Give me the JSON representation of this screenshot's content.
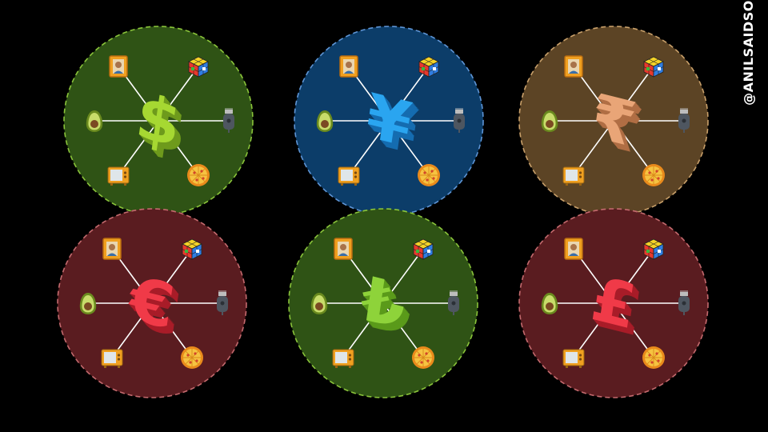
{
  "handle": "@ANILSAIDSO",
  "hubs": [
    {
      "currency": "dollar",
      "symbol": "$",
      "fill": "#2f5315",
      "border": "#8ac43a",
      "accent": "#a6d832",
      "accent_dark": "#6e9a1c"
    },
    {
      "currency": "yen",
      "symbol": "¥",
      "fill": "#0c3d69",
      "border": "#5e95d6",
      "accent": "#2aa5f0",
      "accent_dark": "#156cb0"
    },
    {
      "currency": "rupee",
      "symbol": "₹",
      "fill": "#5c4425",
      "border": "#c9a06a",
      "accent": "#e9a577",
      "accent_dark": "#b06e44"
    },
    {
      "currency": "euro",
      "symbol": "€",
      "fill": "#5a1c20",
      "border": "#c46a6e",
      "accent": "#f03a48",
      "accent_dark": "#a81c28"
    },
    {
      "currency": "lira",
      "symbol": "₺",
      "fill": "#2f5315",
      "border": "#8ac43a",
      "accent": "#8ed33a",
      "accent_dark": "#5a9a1a"
    },
    {
      "currency": "pound",
      "symbol": "£",
      "fill": "#5a1c20",
      "border": "#c46a6e",
      "accent": "#f03a48",
      "accent_dark": "#a81c28"
    }
  ],
  "goods": [
    "portrait-icon",
    "rubiks-cube-icon",
    "avocado-icon",
    "hair-clipper-icon",
    "television-icon",
    "pizza-icon"
  ]
}
